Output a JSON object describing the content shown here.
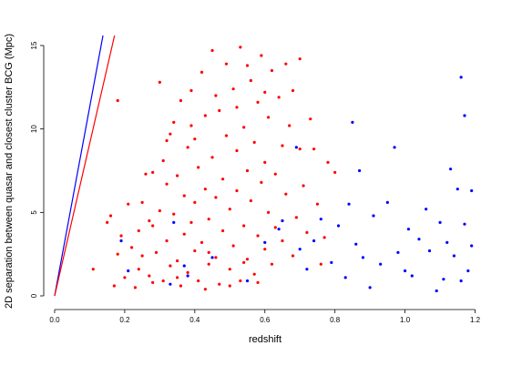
{
  "chart_data": {
    "type": "scatter",
    "x_label": "redshift",
    "y_label": "2D separation between quasar and closest cluster BCG (Mpc)",
    "xlim": [
      -0.048,
      1.248
    ],
    "ylim": [
      -0.6,
      15.6
    ],
    "xticks": [
      {
        "value": 0,
        "label": "0.0"
      },
      0.2,
      0.4,
      0.6,
      0.8,
      {
        "value": 1,
        "label": "1.0"
      },
      1.2
    ],
    "yticks": [
      0,
      5,
      10,
      15
    ],
    "series": [
      {
        "color": "#ff0000",
        "x": [
          0.11,
          0.15,
          0.16,
          0.18,
          0.17,
          0.18,
          0.19,
          0.2,
          0.21,
          0.22,
          0.23,
          0.24,
          0.25,
          0.25,
          0.26,
          0.27,
          0.27,
          0.28,
          0.28,
          0.29,
          0.3,
          0.3,
          0.31,
          0.31,
          0.32,
          0.32,
          0.33,
          0.33,
          0.34,
          0.34,
          0.35,
          0.35,
          0.36,
          0.36,
          0.37,
          0.37,
          0.38,
          0.38,
          0.39,
          0.39,
          0.4,
          0.4,
          0.4,
          0.41,
          0.41,
          0.42,
          0.42,
          0.43,
          0.43,
          0.44,
          0.44,
          0.45,
          0.45,
          0.46,
          0.46,
          0.47,
          0.47,
          0.48,
          0.48,
          0.49,
          0.49,
          0.5,
          0.5,
          0.51,
          0.51,
          0.52,
          0.52,
          0.53,
          0.53,
          0.54,
          0.54,
          0.55,
          0.55,
          0.56,
          0.56,
          0.57,
          0.57,
          0.58,
          0.58,
          0.59,
          0.59,
          0.6,
          0.6,
          0.61,
          0.61,
          0.62,
          0.62,
          0.63,
          0.63,
          0.64,
          0.65,
          0.65,
          0.66,
          0.67,
          0.68,
          0.68,
          0.69,
          0.7,
          0.7,
          0.71,
          0.72,
          0.73,
          0.74,
          0.75,
          0.76,
          0.77,
          0.78,
          0.8,
          0.35,
          0.43,
          0.5,
          0.58,
          0.46,
          0.52,
          0.39,
          0.55,
          0.6,
          0.66,
          0.32,
          0.28,
          0.24,
          0.44,
          0.54
        ],
        "values": [
          1.6,
          4.4,
          4.8,
          11.7,
          0.6,
          2.5,
          3.6,
          1.1,
          5.5,
          2.9,
          0.5,
          3.9,
          2.4,
          5.6,
          7.3,
          1.2,
          4.5,
          0.8,
          7.4,
          2.6,
          12.8,
          5.1,
          8.1,
          0.9,
          3.3,
          6.7,
          9.7,
          1.8,
          4.9,
          10.4,
          2.1,
          7.2,
          11.7,
          0.6,
          3.7,
          6.0,
          8.9,
          1.4,
          12.3,
          4.4,
          5.6,
          2.7,
          9.4,
          0.9,
          7.7,
          13.4,
          3.2,
          6.4,
          10.8,
          1.9,
          4.6,
          14.7,
          8.3,
          2.3,
          5.9,
          11.1,
          0.7,
          3.9,
          7.0,
          13.9,
          9.6,
          1.6,
          5.2,
          12.4,
          3.0,
          8.7,
          6.3,
          14.9,
          0.9,
          10.1,
          4.2,
          7.5,
          2.2,
          12.9,
          5.7,
          9.2,
          1.3,
          11.6,
          3.6,
          6.8,
          14.4,
          8.0,
          2.8,
          10.7,
          5.0,
          13.5,
          1.9,
          7.3,
          4.1,
          11.9,
          9.0,
          3.3,
          6.1,
          10.2,
          12.3,
          2.4,
          4.7,
          14.2,
          8.8,
          6.6,
          3.8,
          10.6,
          8.8,
          5.5,
          1.9,
          3.5,
          8.0,
          7.4,
          1.1,
          0.4,
          0.6,
          0.8,
          12.0,
          11.3,
          10.2,
          13.8,
          12.2,
          13.9,
          9.3,
          4.2,
          1.6,
          2.6,
          2.0
        ]
      },
      {
        "color": "#0000ff",
        "x": [
          0.19,
          0.21,
          0.33,
          0.34,
          0.37,
          0.38,
          0.45,
          0.55,
          0.6,
          0.64,
          0.65,
          0.69,
          0.7,
          0.72,
          0.74,
          0.76,
          0.79,
          0.81,
          0.83,
          0.84,
          0.85,
          0.86,
          0.87,
          0.88,
          0.9,
          0.91,
          0.93,
          0.95,
          0.97,
          0.98,
          1.0,
          1.01,
          1.02,
          1.04,
          1.06,
          1.07,
          1.09,
          1.1,
          1.11,
          1.12,
          1.13,
          1.14,
          1.15,
          1.16,
          1.16,
          1.17,
          1.17,
          1.18,
          1.19,
          1.19
        ],
        "values": [
          3.3,
          1.5,
          0.7,
          4.4,
          1.8,
          1.2,
          2.3,
          0.9,
          3.2,
          4.0,
          4.5,
          8.9,
          2.8,
          1.6,
          3.3,
          4.6,
          2.0,
          4.2,
          1.1,
          5.5,
          10.4,
          3.1,
          7.5,
          2.3,
          0.5,
          4.8,
          1.9,
          5.6,
          8.9,
          2.6,
          1.5,
          4.0,
          1.2,
          3.4,
          5.2,
          2.7,
          0.3,
          4.4,
          1.0,
          3.2,
          7.6,
          2.4,
          6.4,
          13.1,
          0.9,
          10.8,
          4.3,
          1.5,
          6.3,
          3.0
        ]
      }
    ],
    "lines": [
      {
        "color": "#0000ff",
        "x": [
          0,
          0.138
        ],
        "values": [
          0,
          15.6
        ]
      },
      {
        "color": "#ff0000",
        "x": [
          0,
          0.171
        ],
        "values": [
          0,
          15.6
        ]
      }
    ]
  }
}
